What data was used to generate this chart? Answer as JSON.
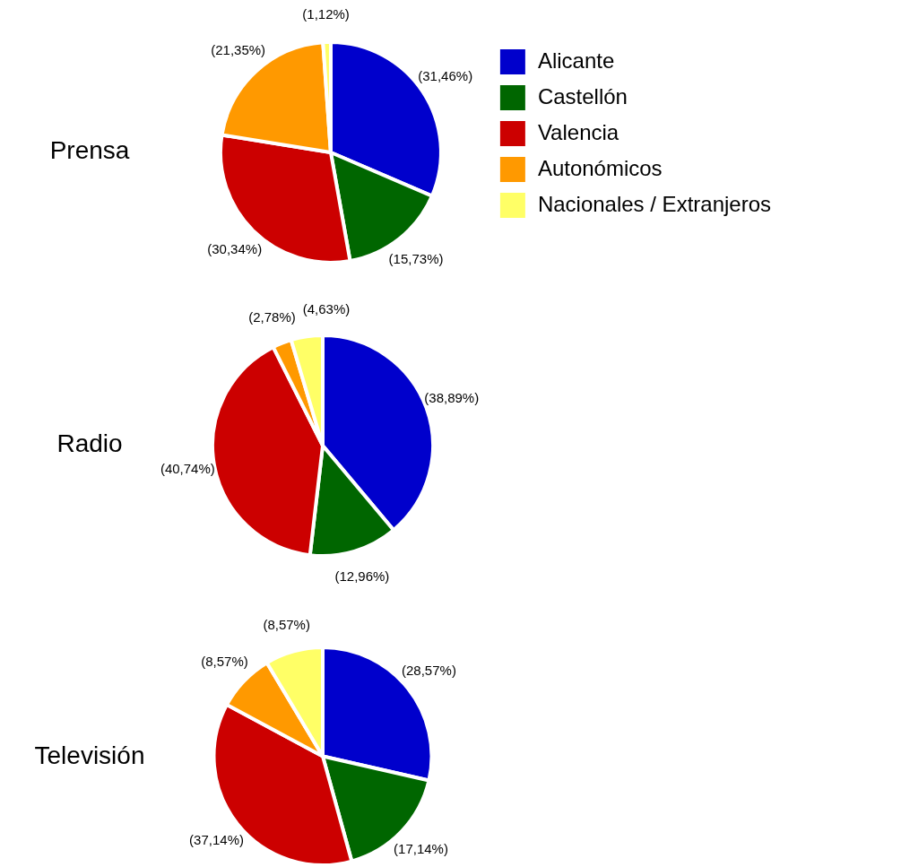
{
  "chart_data": [
    {
      "type": "pie",
      "title": "Prensa",
      "categories": [
        "Alicante",
        "Castellón",
        "Valencia",
        "Autonómicos",
        "Nacionales / Extranjeros"
      ],
      "values": [
        31.46,
        15.73,
        30.34,
        21.35,
        1.12
      ],
      "colors": [
        "#0000cc",
        "#006600",
        "#cc0000",
        "#ff9900",
        "#ffff66"
      ],
      "value_labels": [
        "(31,46%)",
        "(15,73%)",
        "(30,34%)",
        "(21,35%)",
        "(1,12%)"
      ],
      "legend": "right"
    },
    {
      "type": "pie",
      "title": "Radio",
      "categories": [
        null,
        null,
        null,
        null,
        null
      ],
      "values": [
        38.89,
        12.96,
        40.74,
        2.78,
        4.63
      ],
      "colors": [
        "#0000cc",
        "#006600",
        "#cc0000",
        "#ff9900",
        "#ffff66"
      ],
      "value_labels": [
        "(38,89%)",
        "(12,96%)",
        "(40,74%)",
        "(2,78%)",
        "(4,63%)"
      ]
    },
    {
      "type": "pie",
      "title": "Televisión",
      "categories": [
        null,
        null,
        null,
        null,
        null
      ],
      "values": [
        28.57,
        17.14,
        37.14,
        8.57,
        8.57
      ],
      "colors": [
        "#0000cc",
        "#006600",
        "#cc0000",
        "#ff9900",
        "#ffff66"
      ],
      "value_labels": [
        "(28,57%)",
        "(17,14%)",
        "(37,14%)",
        "(8,57%)",
        "(8,57%)"
      ]
    }
  ]
}
